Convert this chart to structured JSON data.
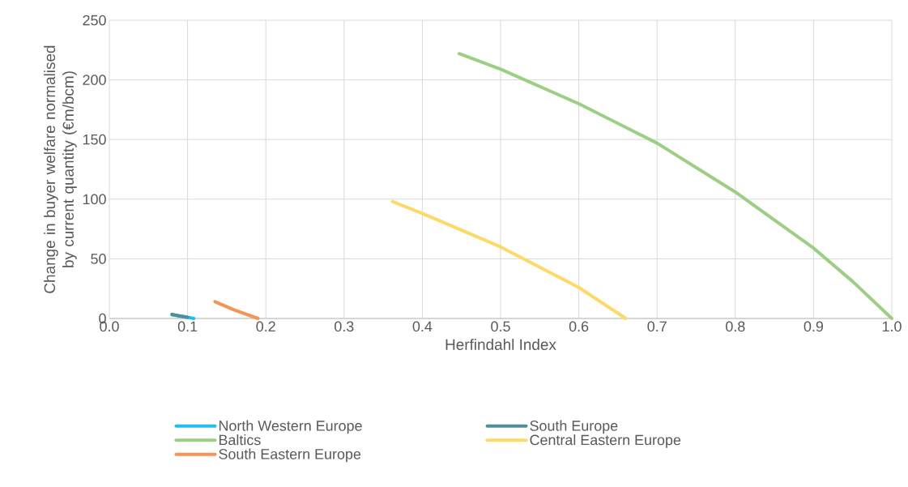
{
  "chart_data": {
    "type": "line",
    "xlabel": "Herfindahl Index",
    "ylabel": "Change in buyer welfare normalised by current quantity  (€m/bcm)",
    "xlim": [
      0,
      1
    ],
    "ylim": [
      0,
      250
    ],
    "xticks": [
      {
        "value": 0,
        "label": "0.0"
      },
      {
        "value": 0.1,
        "label": "0.1"
      },
      {
        "value": 0.2,
        "label": "0.2"
      },
      {
        "value": 0.3,
        "label": "0.3"
      },
      {
        "value": 0.4,
        "label": "0.4"
      },
      {
        "value": 0.5,
        "label": "0.5"
      },
      {
        "value": 0.6,
        "label": "0.6"
      },
      {
        "value": 0.7,
        "label": "0.7"
      },
      {
        "value": 0.8,
        "label": "0.8"
      },
      {
        "value": 0.9,
        "label": "0.9"
      },
      {
        "value": 1,
        "label": "1.0"
      }
    ],
    "yticks": [
      0,
      50,
      100,
      150,
      200,
      250
    ],
    "grid": true,
    "legend": "bottom",
    "marker": "none",
    "line_style": "solid",
    "series": [
      {
        "name": "North Western Europe",
        "color": "#1fc0ef",
        "x": [
          0.08,
          0.095,
          0.108
        ],
        "values": [
          3,
          1.5,
          0
        ]
      },
      {
        "name": "South Europe",
        "color": "#4e9096",
        "x": [
          0.08,
          0.09,
          0.1
        ],
        "values": [
          3.5,
          2,
          1
        ]
      },
      {
        "name": "Baltics",
        "color": "#9ccf84",
        "x": [
          0.447,
          0.5,
          0.6,
          0.7,
          0.8,
          0.9,
          0.95,
          1.0
        ],
        "values": [
          222,
          209,
          180,
          147,
          106,
          59,
          31,
          0
        ]
      },
      {
        "name": "Central Eastern Europe",
        "color": "#ffd966",
        "x": [
          0.362,
          0.4,
          0.5,
          0.6,
          0.66
        ],
        "values": [
          98,
          88,
          60,
          26,
          0
        ]
      },
      {
        "name": "South Eastern Europe",
        "color": "#f79454",
        "x": [
          0.135,
          0.16,
          0.19
        ],
        "values": [
          14,
          7,
          0
        ]
      }
    ]
  }
}
